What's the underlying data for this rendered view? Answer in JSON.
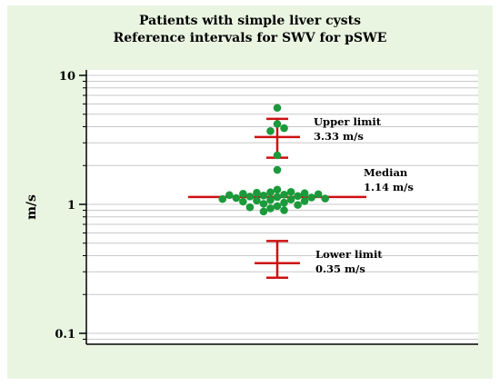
{
  "chart_data": {
    "type": "scatter",
    "title": "Patients with simple liver cysts",
    "subtitle": "Reference intervals for SWV  for  pSWE",
    "ylabel": "m/s",
    "xlabel": "",
    "yscale": "log",
    "ylim": [
      0.07,
      13
    ],
    "yticks": [
      {
        "value": 10,
        "label": "10"
      },
      {
        "value": 1,
        "label": "1"
      },
      {
        "value": 0.1,
        "label": "0.1"
      }
    ],
    "grid": true,
    "points": [
      5.6,
      4.2,
      3.9,
      3.7,
      2.4,
      1.85,
      1.3,
      1.25,
      1.24,
      1.23,
      1.22,
      1.21,
      1.2,
      1.19,
      1.18,
      1.17,
      1.16,
      1.15,
      1.14,
      1.13,
      1.12,
      1.11,
      1.1,
      1.09,
      1.08,
      1.07,
      1.06,
      1.05,
      1.03,
      1.01,
      0.99,
      0.97,
      0.95,
      0.93,
      0.9,
      0.88
    ],
    "median": {
      "value": 1.14,
      "label": "Median",
      "value_label": "1.14 m/s"
    },
    "upper_limit": {
      "value": 3.33,
      "ci": [
        2.3,
        4.6
      ],
      "label": "Upper limit",
      "value_label": "3.33 m/s"
    },
    "lower_limit": {
      "value": 0.35,
      "ci": [
        0.27,
        0.52
      ],
      "label": "Lower limit",
      "value_label": "0.35 m/s"
    },
    "colors": {
      "points": "#1a9a3a",
      "lines": "#cc1111",
      "grid": "#c8c8c8",
      "axis": "#000000",
      "plot_bg": "#ffffff",
      "frame_bg": "#e9f5e1"
    }
  }
}
